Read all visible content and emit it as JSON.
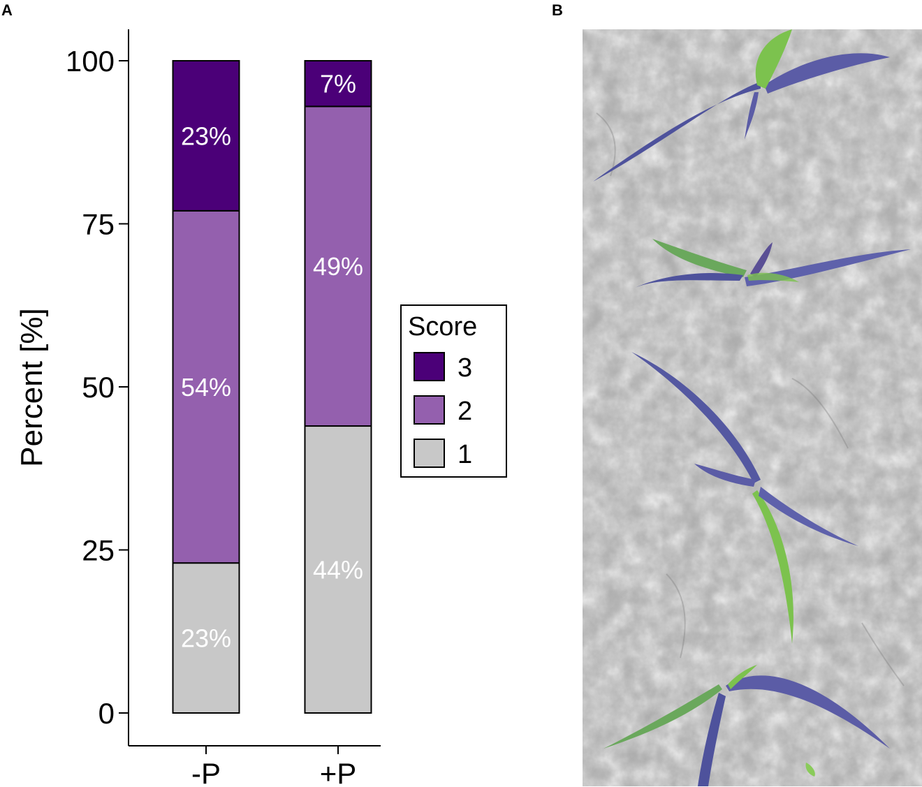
{
  "panels": {
    "a_label": "A",
    "b_label": "B"
  },
  "chart_data": {
    "type": "bar",
    "stacked": true,
    "categories": [
      "-P",
      "+P"
    ],
    "ylabel": "Percent [%]",
    "xlabel": "",
    "ylim": [
      0,
      100
    ],
    "yticks": [
      "0",
      "25",
      "50",
      "75",
      "100"
    ],
    "grid": false,
    "series": [
      {
        "name": "1",
        "color": "#c8c8c8",
        "values": [
          23,
          44
        ],
        "labels": [
          "23%",
          "44%"
        ]
      },
      {
        "name": "2",
        "color": "#9460ae",
        "values": [
          54,
          49
        ],
        "labels": [
          "54%",
          "49%"
        ]
      },
      {
        "name": "3",
        "color": "#4b0078",
        "values": [
          23,
          7
        ],
        "labels": [
          "23%",
          "7%"
        ]
      }
    ],
    "legend": {
      "title": "Score",
      "placement": "right",
      "order": [
        "3",
        "2",
        "1"
      ]
    }
  },
  "photo": {
    "icon": "maize-seedlings-photo-icon"
  }
}
